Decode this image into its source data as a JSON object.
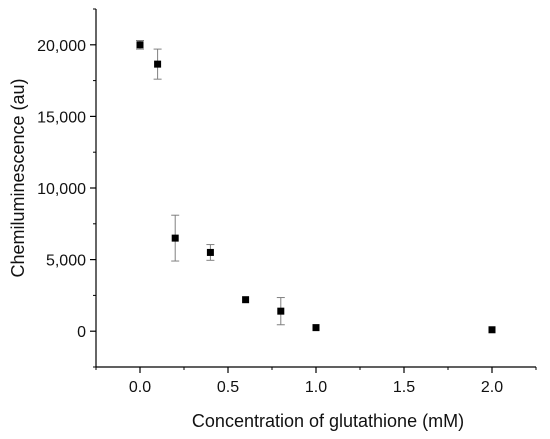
{
  "chart_data": {
    "type": "scatter",
    "xlabel": "Concentration of glutathione (mM)",
    "ylabel": "Chemiluminescence (au)",
    "xlim": [
      -0.25,
      2.25
    ],
    "ylim": [
      -2500,
      22500
    ],
    "x_ticks": [
      0.0,
      0.5,
      1.0,
      1.5,
      2.0
    ],
    "x_tick_labels": [
      "0.0",
      "0.5",
      "1.0",
      "1.5",
      "2.0"
    ],
    "y_ticks": [
      0,
      5000,
      10000,
      15000,
      20000
    ],
    "y_tick_labels": [
      "0",
      "5,000",
      "10,000",
      "15,000",
      "20,000"
    ],
    "grid": false,
    "marker": "square",
    "marker_color": "#000000",
    "errorbar_color": "#808080",
    "points": [
      {
        "x": 0.0,
        "y": 20000,
        "err": 300
      },
      {
        "x": 0.1,
        "y": 18650,
        "err": 1050
      },
      {
        "x": 0.2,
        "y": 6500,
        "err": 1600
      },
      {
        "x": 0.4,
        "y": 5500,
        "err": 550
      },
      {
        "x": 0.6,
        "y": 2200,
        "err": 0
      },
      {
        "x": 0.8,
        "y": 1400,
        "err": 950
      },
      {
        "x": 1.0,
        "y": 250,
        "err": 0
      },
      {
        "x": 2.0,
        "y": 100,
        "err": 0
      }
    ]
  }
}
